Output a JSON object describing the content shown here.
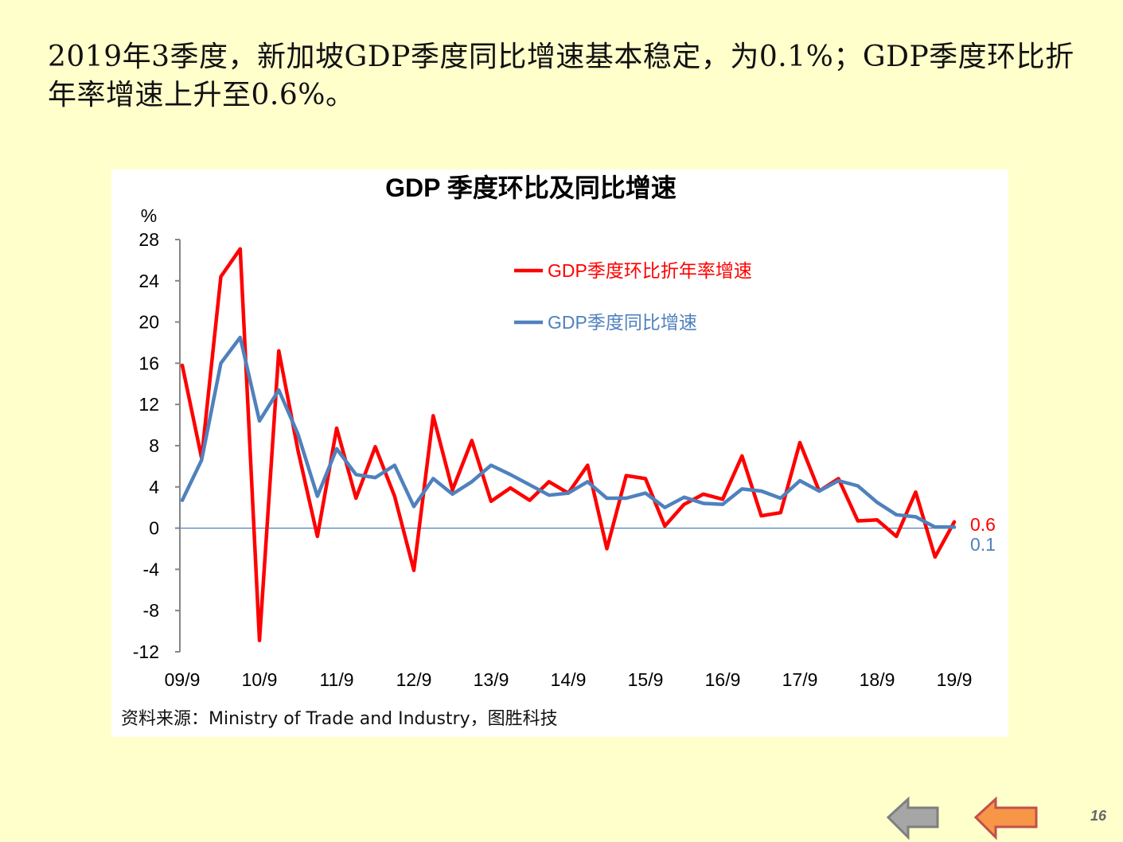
{
  "heading": "2019年3季度，新加坡GDP季度同比增速基本稳定，为0.1%；GDP季度环比折年率增速上升至0.6%。",
  "source_note": "资料来源：Ministry of Trade and Industry，图胜科技",
  "page_number": "16",
  "colors": {
    "background": "#ffffcc",
    "series_qoq": "#ff0000",
    "series_yoy": "#4f81bd",
    "zero_line": "#4f81bd",
    "nav_back": "#a6a6a6",
    "nav_forward": "#f79646"
  },
  "nav": {
    "back_icon": "left-arrow-icon",
    "forward_icon": "left-arrow-icon"
  },
  "chart_data": {
    "type": "line",
    "title": "GDP 季度环比及同比增速",
    "ylabel": "%",
    "ylim": [
      -12,
      28
    ],
    "yticks": [
      "28",
      "24",
      "20",
      "16",
      "12",
      "8",
      "4",
      "0",
      "-4",
      "-8",
      "-12"
    ],
    "xticks": [
      "09/9",
      "10/9",
      "11/9",
      "12/9",
      "13/9",
      "14/9",
      "15/9",
      "16/9",
      "17/9",
      "18/9",
      "19/9"
    ],
    "x": [
      "09/9",
      "09/12",
      "10/3",
      "10/6",
      "10/9",
      "10/12",
      "11/3",
      "11/6",
      "11/9",
      "11/12",
      "12/3",
      "12/6",
      "12/9",
      "12/12",
      "13/3",
      "13/6",
      "13/9",
      "13/12",
      "14/3",
      "14/6",
      "14/9",
      "14/12",
      "15/3",
      "15/6",
      "15/9",
      "15/12",
      "16/3",
      "16/6",
      "16/9",
      "16/12",
      "17/3",
      "17/6",
      "17/9",
      "17/12",
      "18/3",
      "18/6",
      "18/9",
      "18/12",
      "19/3",
      "19/6",
      "19/9"
    ],
    "legend_position": "top-right",
    "grid": false,
    "series": [
      {
        "name": "GDP季度环比折年率增速",
        "color": "#ff0000",
        "values": [
          15.8,
          6.8,
          24.4,
          27.1,
          -10.9,
          17.2,
          7.5,
          -0.8,
          9.7,
          2.9,
          7.9,
          3.1,
          -4.1,
          10.9,
          3.7,
          8.5,
          2.6,
          3.9,
          2.7,
          4.5,
          3.4,
          6.1,
          -2.0,
          5.1,
          4.8,
          0.2,
          2.3,
          3.3,
          2.8,
          7.0,
          1.2,
          1.5,
          8.3,
          3.6,
          4.8,
          0.7,
          0.8,
          -0.8,
          3.5,
          -2.8,
          0.6
        ],
        "end_label": "0.6"
      },
      {
        "name": "GDP季度同比增速",
        "color": "#4f81bd",
        "values": [
          2.7,
          6.6,
          16.0,
          18.5,
          10.4,
          13.4,
          9.1,
          3.1,
          7.7,
          5.2,
          4.9,
          6.1,
          2.1,
          4.8,
          3.3,
          4.5,
          6.1,
          5.2,
          4.2,
          3.2,
          3.4,
          4.5,
          2.9,
          2.9,
          3.4,
          2.0,
          3.0,
          2.4,
          2.3,
          3.8,
          3.6,
          2.9,
          4.6,
          3.6,
          4.6,
          4.1,
          2.5,
          1.3,
          1.1,
          0.1,
          0.1
        ],
        "end_label": "0.1"
      }
    ]
  }
}
